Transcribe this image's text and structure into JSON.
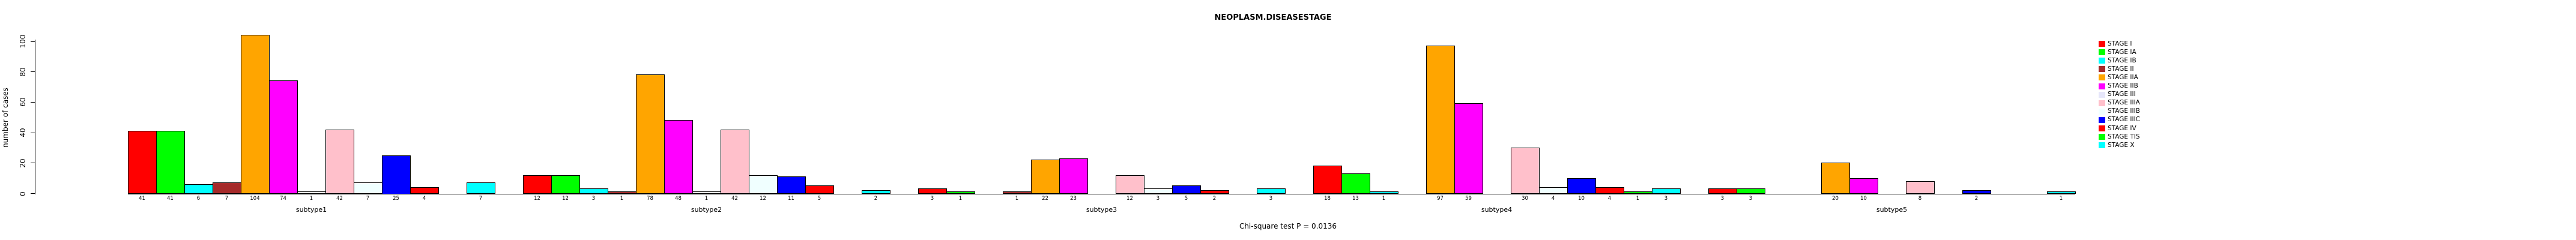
{
  "chart": {
    "title": "NEOPLASM.DISEASESTAGE",
    "ylabel": "number of cases",
    "footer": "Chi-square test P = 0.0136"
  },
  "chart_data": {
    "type": "bar",
    "grouped": true,
    "title": "NEOPLASM.DISEASESTAGE",
    "xlabel": "",
    "ylabel": "number of cases",
    "annotation": "Chi-square test P = 0.0136",
    "categories": [
      "subtype1",
      "subtype2",
      "subtype3",
      "subtype4",
      "subtype5"
    ],
    "y_ticks": [
      0,
      20,
      40,
      60,
      80,
      100
    ],
    "ylim": [
      0,
      107
    ],
    "grid": false,
    "legend_position": "right",
    "bar_value_labels": true,
    "zero_values_hidden": true,
    "series": [
      {
        "name": "STAGE I",
        "color": "#FF0000",
        "values": [
          41,
          12,
          3,
          18,
          3
        ]
      },
      {
        "name": "STAGE IA",
        "color": "#00FF00",
        "values": [
          41,
          12,
          1,
          13,
          3
        ]
      },
      {
        "name": "STAGE IB",
        "color": "#00FFFF",
        "values": [
          6,
          3,
          0,
          1,
          0
        ]
      },
      {
        "name": "STAGE II",
        "color": "#A52A2A",
        "values": [
          7,
          1,
          1,
          0,
          0
        ]
      },
      {
        "name": "STAGE IIA",
        "color": "#FFA500",
        "values": [
          104,
          78,
          22,
          97,
          20
        ]
      },
      {
        "name": "STAGE IIB",
        "color": "#FF00FF",
        "values": [
          74,
          48,
          23,
          59,
          10
        ]
      },
      {
        "name": "STAGE III",
        "color": "#E6E6FA",
        "values": [
          1,
          1,
          0,
          0,
          0
        ]
      },
      {
        "name": "STAGE IIIA",
        "color": "#FFC0CB",
        "values": [
          42,
          42,
          12,
          30,
          8
        ]
      },
      {
        "name": "STAGE IIIB",
        "color": "#F0FFFF",
        "values": [
          7,
          12,
          3,
          4,
          0
        ]
      },
      {
        "name": "STAGE IIIC",
        "color": "#0000FF",
        "values": [
          25,
          11,
          5,
          10,
          2
        ]
      },
      {
        "name": "STAGE IV",
        "color": "#FF0000",
        "values": [
          4,
          5,
          2,
          4,
          0
        ]
      },
      {
        "name": "STAGE TIS",
        "color": "#00FF00",
        "values": [
          0,
          0,
          0,
          1,
          0
        ]
      },
      {
        "name": "STAGE X",
        "color": "#00FFFF",
        "values": [
          7,
          2,
          3,
          3,
          1
        ]
      }
    ]
  }
}
